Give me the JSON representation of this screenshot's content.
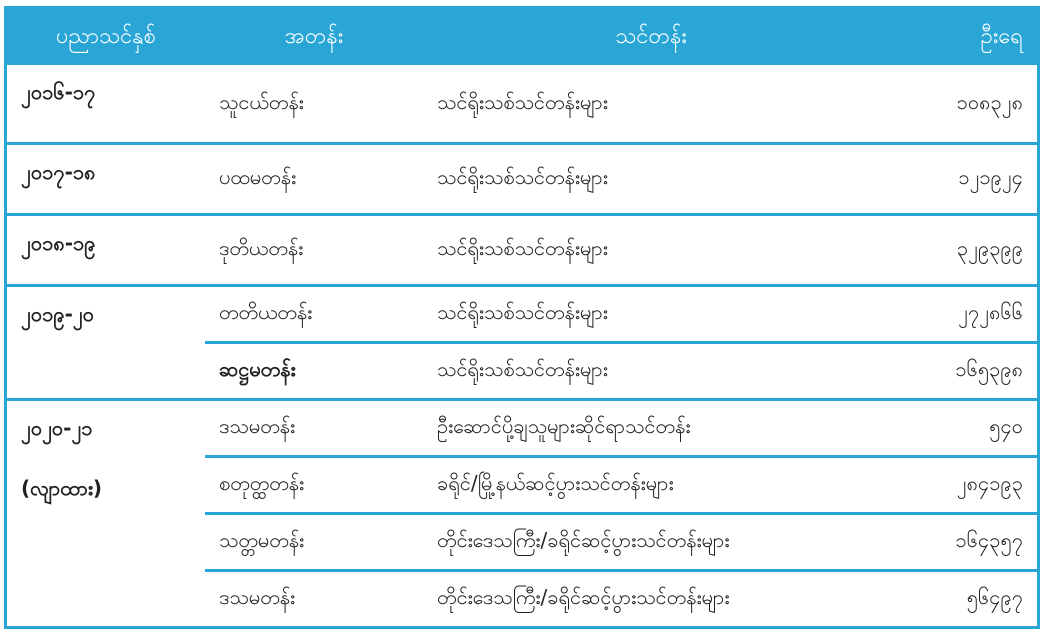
{
  "table": {
    "headers": [
      "ပညာသင်နှစ်",
      "အတန်း",
      "သင်တန်း",
      "ဦးရေ"
    ],
    "header_color": "#2aa6d6",
    "groups": [
      {
        "year": "၂၀၁၆-၁၇",
        "rows": [
          {
            "class": "သူငယ်တန်း",
            "course": "သင်ရိုးသစ်သင်တန်းများ",
            "count": "၁၀၈၃၂၈"
          }
        ]
      },
      {
        "year": "၂၀၁၇-၁၈",
        "rows": [
          {
            "class": "ပထမတန်း",
            "course": "သင်ရိုးသစ်သင်တန်းများ",
            "count": "၁၂၁၉၂၄"
          }
        ]
      },
      {
        "year": "၂၀၁၈-၁၉",
        "rows": [
          {
            "class": "ဒုတိယတန်း",
            "course": "သင်ရိုးသစ်သင်တန်းများ",
            "count": "၃၂၉၃၉၉"
          }
        ]
      },
      {
        "year": "၂၀၁၉-၂၀",
        "rows": [
          {
            "class": "တတိယတန်း",
            "course": "သင်ရိုးသစ်သင်တန်းများ",
            "count": "၂၇၂၈၆၆"
          },
          {
            "class": "ဆဋ္ဌမတန်း",
            "course": "သင်ရိုးသစ်သင်တန်းများ",
            "count": "၁၆၅၃၉၈"
          }
        ]
      },
      {
        "year": "၂၀၂၀-၂၁",
        "year_note": "(လျာထား)",
        "rows": [
          {
            "class": "ဒသမတန်း",
            "course": "ဦးဆောင်ပို့ချသူများဆိုင်ရာသင်တန်း",
            "count": "၅၄၀"
          },
          {
            "class": "စတုတ္ထတန်း",
            "course": "ခရိုင်/မြို့နယ်ဆင့်ပွားသင်တန်းများ",
            "count": "၂၈၄၁၉၃"
          },
          {
            "class": "သတ္တမတန်း",
            "course": "တိုင်းဒေသကြီး/ခရိုင်ဆင့်ပွားသင်တန်းများ",
            "count": "၁၆၄၃၅၇"
          },
          {
            "class": "ဒသမတန်း",
            "course": "တိုင်းဒေသကြီး/ခရိုင်ဆင့်ပွားသင်တန်းများ",
            "count": "၅၆၄၉၇"
          }
        ]
      }
    ]
  }
}
